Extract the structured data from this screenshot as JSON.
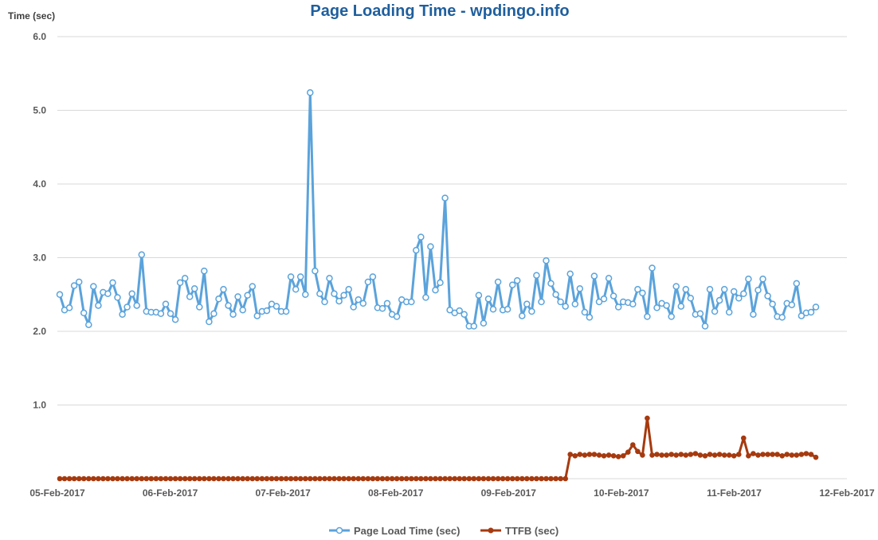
{
  "chart_data": {
    "type": "line",
    "title": "Page Loading Time - wpdingo.info",
    "ylabel": "Time (sec)",
    "xlabel": "",
    "ylim": [
      0,
      6
    ],
    "yticks": [
      "1.0",
      "2.0",
      "3.0",
      "4.0",
      "5.0",
      "6.0"
    ],
    "x_range": [
      "05-Feb-2017",
      "12-Feb-2017"
    ],
    "xticks": [
      "05-Feb-2017",
      "06-Feb-2017",
      "07-Feb-2017",
      "08-Feb-2017",
      "09-Feb-2017",
      "10-Feb-2017",
      "11-Feb-2017",
      "12-Feb-2017"
    ],
    "grid": true,
    "legend_position": "bottom",
    "colors": {
      "page_load": "#5BA3DB",
      "ttfb": "#A63A0F",
      "title": "#1F5F9E",
      "grid": "#D9D9D9"
    },
    "series": [
      {
        "name": "Page Load Time (sec)",
        "values": [
          2.5,
          2.29,
          2.32,
          2.62,
          2.67,
          2.25,
          2.09,
          2.61,
          2.35,
          2.53,
          2.51,
          2.66,
          2.46,
          2.23,
          2.33,
          2.51,
          2.35,
          3.04,
          2.27,
          2.26,
          2.26,
          2.24,
          2.37,
          2.24,
          2.16,
          2.66,
          2.72,
          2.47,
          2.58,
          2.33,
          2.82,
          2.13,
          2.24,
          2.44,
          2.57,
          2.35,
          2.23,
          2.47,
          2.29,
          2.49,
          2.61,
          2.21,
          2.27,
          2.28,
          2.37,
          2.34,
          2.27,
          2.27,
          2.74,
          2.57,
          2.74,
          2.5,
          5.24,
          2.82,
          2.51,
          2.4,
          2.72,
          2.51,
          2.41,
          2.49,
          2.57,
          2.33,
          2.43,
          2.38,
          2.67,
          2.74,
          2.32,
          2.31,
          2.38,
          2.23,
          2.2,
          2.43,
          2.4,
          2.4,
          3.1,
          3.28,
          2.46,
          3.15,
          2.56,
          2.66,
          3.81,
          2.29,
          2.25,
          2.28,
          2.23,
          2.07,
          2.07,
          2.49,
          2.11,
          2.44,
          2.3,
          2.67,
          2.29,
          2.3,
          2.63,
          2.69,
          2.21,
          2.37,
          2.27,
          2.76,
          2.4,
          2.96,
          2.65,
          2.5,
          2.4,
          2.34,
          2.78,
          2.37,
          2.58,
          2.26,
          2.19,
          2.75,
          2.4,
          2.44,
          2.72,
          2.48,
          2.33,
          2.4,
          2.39,
          2.37,
          2.57,
          2.52,
          2.2,
          2.86,
          2.32,
          2.38,
          2.35,
          2.2,
          2.61,
          2.34,
          2.57,
          2.45,
          2.23,
          2.24,
          2.07,
          2.57,
          2.27,
          2.42,
          2.57,
          2.26,
          2.54,
          2.45,
          2.51,
          2.71,
          2.23,
          2.56,
          2.71,
          2.48,
          2.37,
          2.2,
          2.19,
          2.38,
          2.36,
          2.65,
          2.21,
          2.25,
          2.26,
          2.33
        ]
      },
      {
        "name": "TTFB (sec)",
        "values": [
          0,
          0,
          0,
          0,
          0,
          0,
          0,
          0,
          0,
          0,
          0,
          0,
          0,
          0,
          0,
          0,
          0,
          0,
          0,
          0,
          0,
          0,
          0,
          0,
          0,
          0,
          0,
          0,
          0,
          0,
          0,
          0,
          0,
          0,
          0,
          0,
          0,
          0,
          0,
          0,
          0,
          0,
          0,
          0,
          0,
          0,
          0,
          0,
          0,
          0,
          0,
          0,
          0,
          0,
          0,
          0,
          0,
          0,
          0,
          0,
          0,
          0,
          0,
          0,
          0,
          0,
          0,
          0,
          0,
          0,
          0,
          0,
          0,
          0,
          0,
          0,
          0,
          0,
          0,
          0,
          0,
          0,
          0,
          0,
          0,
          0,
          0,
          0,
          0,
          0,
          0,
          0,
          0,
          0,
          0,
          0,
          0,
          0,
          0,
          0,
          0,
          0,
          0,
          0,
          0,
          0,
          0.33,
          0.31,
          0.33,
          0.32,
          0.33,
          0.33,
          0.32,
          0.31,
          0.32,
          0.31,
          0.3,
          0.31,
          0.36,
          0.46,
          0.37,
          0.32,
          0.82,
          0.32,
          0.33,
          0.32,
          0.32,
          0.33,
          0.32,
          0.33,
          0.32,
          0.33,
          0.34,
          0.32,
          0.31,
          0.33,
          0.32,
          0.33,
          0.32,
          0.32,
          0.31,
          0.33,
          0.55,
          0.31,
          0.34,
          0.32,
          0.33,
          0.33,
          0.33,
          0.33,
          0.31,
          0.33,
          0.32,
          0.32,
          0.33,
          0.34,
          0.33,
          0.29
        ]
      }
    ]
  }
}
